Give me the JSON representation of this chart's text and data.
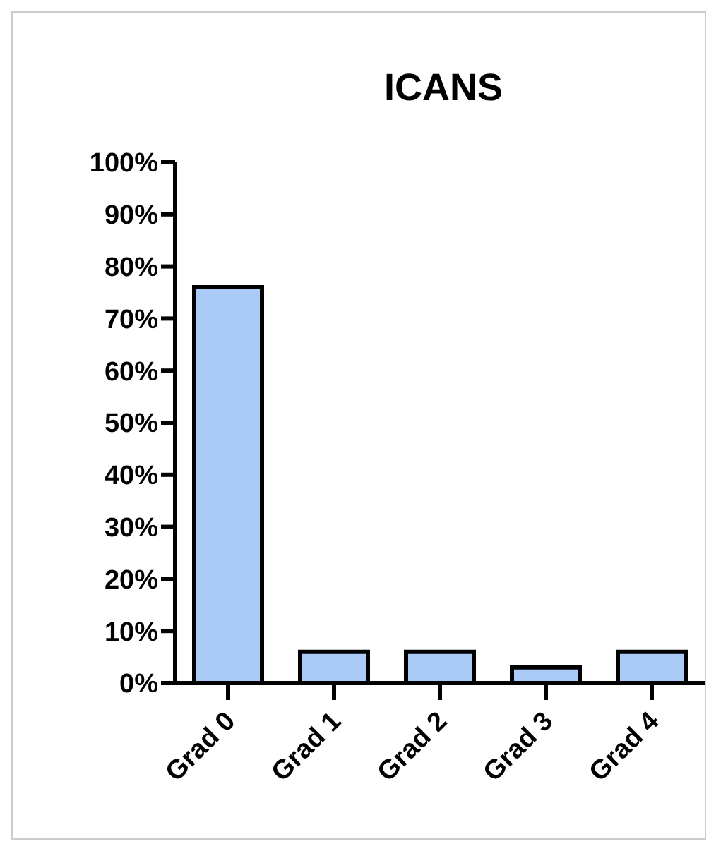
{
  "chart_data": {
    "type": "bar",
    "title": "ICANS",
    "categories": [
      "Grad 0",
      "Grad 1",
      "Grad 2",
      "Grad 3",
      "Grad 4"
    ],
    "values": [
      76,
      6,
      6,
      3,
      6
    ],
    "color": "#aacbf7",
    "ylim": [
      0,
      100
    ],
    "yticks": [
      {
        "value": 0,
        "label": "0%"
      },
      {
        "value": 10,
        "label": "10%"
      },
      {
        "value": 20,
        "label": "20%"
      },
      {
        "value": 30,
        "label": "30%"
      },
      {
        "value": 40,
        "label": "40%"
      },
      {
        "value": 50,
        "label": "50%"
      },
      {
        "value": 60,
        "label": "60%"
      },
      {
        "value": 70,
        "label": "70%"
      },
      {
        "value": 80,
        "label": "80%"
      },
      {
        "value": 90,
        "label": "90%"
      },
      {
        "value": 100,
        "label": "100%"
      }
    ],
    "grid": false,
    "legend": false
  }
}
